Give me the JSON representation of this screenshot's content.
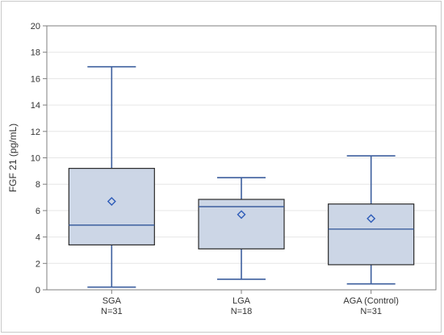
{
  "chart_data": {
    "type": "boxplot",
    "ylabel": "FGF 21 (pg/mL)",
    "xlabel": "",
    "ylim": [
      0,
      20
    ],
    "yticks": [
      0,
      2,
      4,
      6,
      8,
      10,
      12,
      14,
      16,
      18,
      20
    ],
    "grid": true,
    "categories": [
      {
        "label": "SGA",
        "n_label": "N=31"
      },
      {
        "label": "LGA",
        "n_label": "N=18"
      },
      {
        "label": "AGA (Control)",
        "n_label": "N=31"
      }
    ],
    "boxes": [
      {
        "whisker_low": 0.2,
        "q1": 3.4,
        "median": 4.9,
        "mean": 6.7,
        "q3": 9.2,
        "whisker_high": 16.9
      },
      {
        "whisker_low": 0.8,
        "q1": 3.1,
        "median": 6.3,
        "mean": 5.7,
        "q3": 6.85,
        "whisker_high": 8.5
      },
      {
        "whisker_low": 0.45,
        "q1": 1.9,
        "median": 4.6,
        "mean": 5.4,
        "q3": 6.5,
        "whisker_high": 10.15
      }
    ],
    "colors": {
      "box_fill": "#ccd6e6",
      "box_border": "#2b2b2b",
      "whisker": "#3d5f9e",
      "median": "#3d5f9e",
      "mean_marker": "#2e5cb8",
      "grid": "#e6e6e6"
    }
  }
}
